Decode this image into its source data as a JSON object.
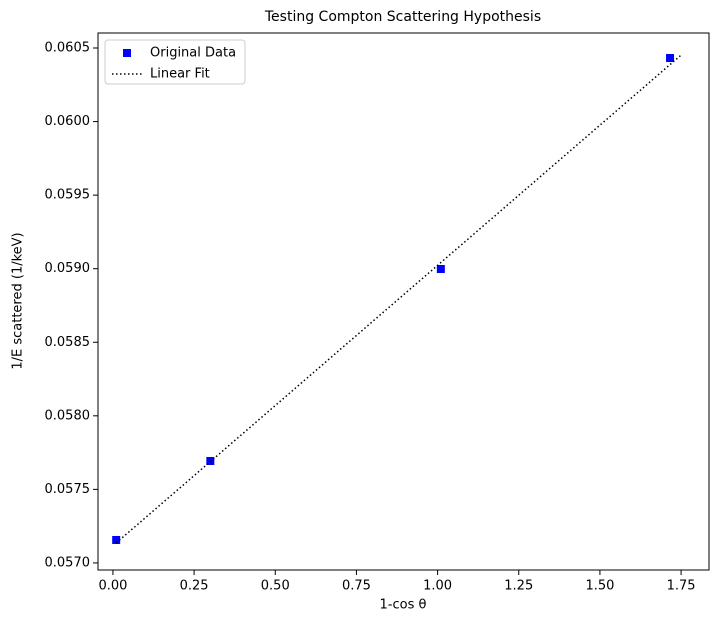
{
  "chart_data": {
    "type": "scatter",
    "title": "Testing Compton Scattering Hypothesis",
    "xlabel": "1-cos θ",
    "ylabel": "1/E scattered (1/keV)",
    "xlim": [
      -0.046,
      1.836
    ],
    "ylim": [
      0.056952,
      0.060602
    ],
    "xticks": [
      {
        "value": 0,
        "label": "0.00"
      },
      {
        "value": 0.25,
        "label": "0.25"
      },
      {
        "value": 0.5,
        "label": "0.50"
      },
      {
        "value": 0.75,
        "label": "0.75"
      },
      {
        "value": 1,
        "label": "1.00"
      },
      {
        "value": 1.25,
        "label": "1.25"
      },
      {
        "value": 1.5,
        "label": "1.50"
      },
      {
        "value": 1.75,
        "label": "1.75"
      }
    ],
    "yticks": [
      {
        "value": 0.057,
        "label": "0.0570"
      },
      {
        "value": 0.0575,
        "label": "0.0575"
      },
      {
        "value": 0.058,
        "label": "0.0580"
      },
      {
        "value": 0.0585,
        "label": "0.0585"
      },
      {
        "value": 0.059,
        "label": "0.0590"
      },
      {
        "value": 0.0595,
        "label": "0.0595"
      },
      {
        "value": 0.06,
        "label": "0.0600"
      },
      {
        "value": 0.0605,
        "label": "0.0605"
      }
    ],
    "legend": "upper left",
    "series": [
      {
        "name": "Original Data",
        "type": "scatter",
        "color": "#0000ff",
        "x": [
          0.01,
          0.3,
          1.01,
          1.716
        ],
        "values": [
          0.057156,
          0.057693,
          0.058998,
          0.060432
        ]
      },
      {
        "name": "Linear Fit",
        "type": "line",
        "color": "#000000",
        "x": [
          0.01,
          1.75
        ],
        "values": [
          0.057136,
          0.060452
        ]
      }
    ]
  }
}
